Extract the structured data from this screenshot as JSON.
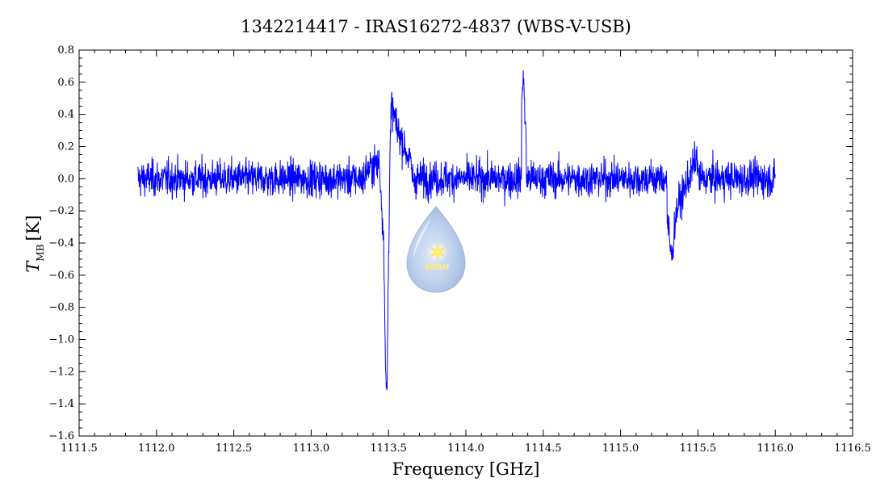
{
  "chart_data": {
    "type": "line",
    "title": "1342214417 - IRAS16272-4837 (WBS-V-USB)",
    "xlabel": "Frequency [GHz]",
    "ylabel": {
      "main": "T",
      "subscript": "MB",
      "unit": "[K]"
    },
    "xlim": [
      1111.5,
      1116.5
    ],
    "ylim": [
      -1.6,
      0.8
    ],
    "x_ticks": [
      "1111.5",
      "1112.0",
      "1112.5",
      "1113.0",
      "1113.5",
      "1114.0",
      "1114.5",
      "1115.0",
      "1115.5",
      "1116.0",
      "1116.5"
    ],
    "y_ticks": [
      "0.8",
      "0.6",
      "0.4",
      "0.2",
      "0.0",
      "-0.2",
      "-0.4",
      "-0.6",
      "-0.8",
      "-1.0",
      "-1.2",
      "-1.4",
      "-1.6"
    ],
    "series": [
      {
        "color": "#0000ff",
        "x_range": [
          1111.88,
          1116.0
        ],
        "noise_rms_K": 0.08,
        "features": [
          {
            "x": 1113.35,
            "y": 0.05
          },
          {
            "x": 1113.44,
            "y": 0.1
          },
          {
            "x": 1113.47,
            "y": -0.4
          },
          {
            "x": 1113.48,
            "y": -1.2
          },
          {
            "x": 1113.49,
            "y": -1.35
          },
          {
            "x": 1113.5,
            "y": -0.5
          },
          {
            "x": 1113.51,
            "y": 0.2
          },
          {
            "x": 1113.52,
            "y": 0.45
          },
          {
            "x": 1113.56,
            "y": 0.3
          },
          {
            "x": 1113.65,
            "y": 0.08
          },
          {
            "x": 1114.36,
            "y": 0.45
          },
          {
            "x": 1114.37,
            "y": 0.68
          },
          {
            "x": 1114.39,
            "y": 0.2
          },
          {
            "x": 1115.3,
            "y": -0.25
          },
          {
            "x": 1115.33,
            "y": -0.5
          },
          {
            "x": 1115.36,
            "y": -0.2
          },
          {
            "x": 1115.5,
            "y": 0.15
          }
        ]
      }
    ],
    "grid": false,
    "legend": "none"
  },
  "watermark": {
    "text": "WISH",
    "colors": {
      "drop": "#a9c2e6",
      "star": "#fff06a"
    }
  }
}
